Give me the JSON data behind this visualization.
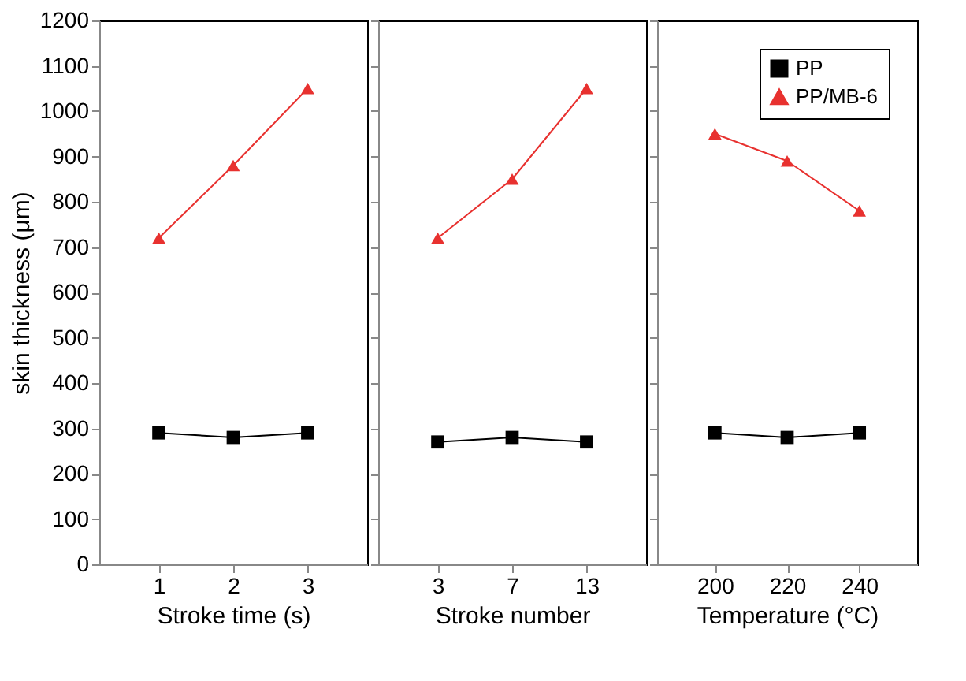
{
  "chart_data": [
    {
      "type": "line",
      "xlabel": "Stroke time (s)",
      "ylabel": "skin thickness (μm)",
      "categories": [
        "1",
        "2",
        "3"
      ],
      "ylim": [
        0,
        1200
      ],
      "yticks": [
        0,
        100,
        200,
        300,
        400,
        500,
        600,
        700,
        800,
        900,
        1000,
        1100,
        1200
      ],
      "grid": false,
      "legend": false,
      "series": [
        {
          "color": "#000000",
          "marker": "square",
          "values": [
            290,
            280,
            290
          ]
        },
        {
          "color": "#e8312f",
          "marker": "triangle",
          "values": [
            720,
            880,
            1050
          ]
        }
      ]
    },
    {
      "type": "line",
      "xlabel": "Stroke number",
      "categories": [
        "3",
        "7",
        "13"
      ],
      "ylim": [
        0,
        1200
      ],
      "yticks": [
        0,
        100,
        200,
        300,
        400,
        500,
        600,
        700,
        800,
        900,
        1000,
        1100,
        1200
      ],
      "tick_labels": "x",
      "grid": false,
      "legend": false,
      "series": [
        {
          "color": "#000000",
          "marker": "square",
          "values": [
            270,
            280,
            270
          ]
        },
        {
          "color": "#e8312f",
          "marker": "triangle",
          "values": [
            720,
            850,
            1050
          ]
        }
      ]
    },
    {
      "type": "line",
      "xlabel": "Temperature (°C)",
      "categories": [
        "200",
        "220",
        "240"
      ],
      "ylim": [
        0,
        1200
      ],
      "yticks": [
        0,
        100,
        200,
        300,
        400,
        500,
        600,
        700,
        800,
        900,
        1000,
        1100,
        1200
      ],
      "tick_labels": "x",
      "grid": false,
      "legend": "top right",
      "series": [
        {
          "name": "PP",
          "color": "#000000",
          "marker": "square",
          "values": [
            290,
            280,
            290
          ]
        },
        {
          "name": "PP/MB-6",
          "color": "#e8312f",
          "marker": "triangle",
          "values": [
            950,
            890,
            780
          ]
        }
      ]
    }
  ]
}
